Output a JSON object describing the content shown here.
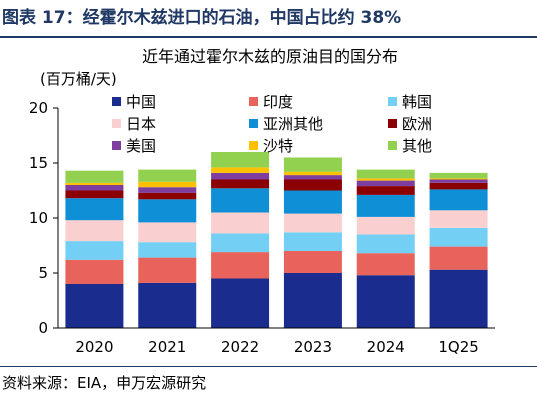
{
  "figure": {
    "title": "图表 17：经霍尔木兹进口的石油，中国占比约 38%",
    "source": "资料来源：EIA，申万宏源研究"
  },
  "chart_data": {
    "type": "bar",
    "stacked": true,
    "title": "近年通过霍尔木兹的原油目的国分布",
    "unit_label": "(百万桶/天)",
    "ylim": [
      0,
      20
    ],
    "yticks": [
      0,
      5,
      10,
      15,
      20
    ],
    "grid": false,
    "legend_position": "top",
    "categories": [
      "2020",
      "2021",
      "2022",
      "2023",
      "2024",
      "1Q25"
    ],
    "series": [
      {
        "name": "中国",
        "color": "#1a2d8f",
        "values": [
          4.0,
          4.1,
          4.5,
          5.0,
          4.8,
          5.3
        ]
      },
      {
        "name": "印度",
        "color": "#e8635b",
        "values": [
          2.2,
          2.3,
          2.4,
          2.0,
          2.0,
          2.1
        ]
      },
      {
        "name": "韩国",
        "color": "#73d0f4",
        "values": [
          1.7,
          1.4,
          1.7,
          1.7,
          1.7,
          1.7
        ]
      },
      {
        "name": "日本",
        "color": "#f9d0cf",
        "values": [
          1.9,
          1.8,
          1.9,
          1.7,
          1.6,
          1.6
        ]
      },
      {
        "name": "亚洲其他",
        "color": "#0f8fd6",
        "values": [
          2.0,
          2.1,
          2.2,
          2.1,
          2.0,
          1.9
        ]
      },
      {
        "name": "欧洲",
        "color": "#8b0000",
        "values": [
          0.7,
          0.6,
          0.8,
          1.0,
          0.8,
          0.6
        ]
      },
      {
        "name": "美国",
        "color": "#7d3ea0",
        "values": [
          0.5,
          0.5,
          0.6,
          0.4,
          0.5,
          0.3
        ]
      },
      {
        "name": "沙特",
        "color": "#ffc000",
        "values": [
          0.2,
          0.5,
          0.5,
          0.3,
          0.2,
          0.1
        ]
      },
      {
        "name": "其他",
        "color": "#92d050",
        "values": [
          1.1,
          1.1,
          1.4,
          1.3,
          0.8,
          0.5
        ]
      }
    ]
  }
}
